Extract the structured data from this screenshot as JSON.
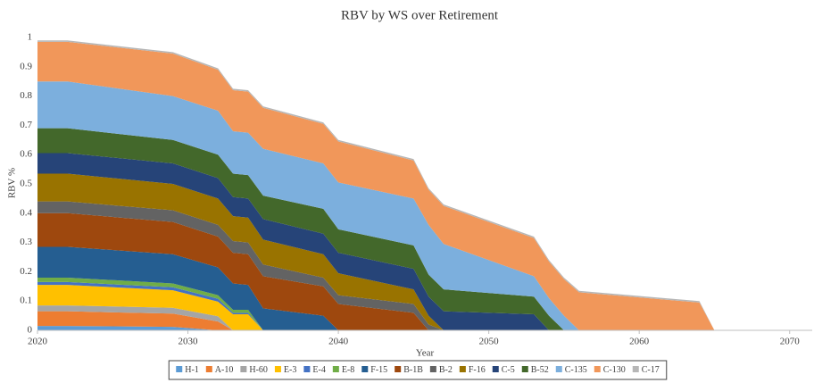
{
  "chart_data": {
    "type": "stacked_area",
    "title": "RBV by WS over Retirement",
    "x_label": "Year",
    "y_label": "RBV %",
    "x": [
      2020,
      2022,
      2029,
      2032,
      2033,
      2034,
      2035,
      2039,
      2040,
      2045,
      2046,
      2047,
      2053,
      2054,
      2055,
      2056,
      2064,
      2065,
      2071
    ],
    "xlim": [
      2020,
      2071.5
    ],
    "xticks": [
      2020,
      2030,
      2040,
      2050,
      2060,
      2070
    ],
    "ylim": [
      0,
      1
    ],
    "yticks": [
      0,
      0.1,
      0.2,
      0.3,
      0.4,
      0.5,
      0.6,
      0.7,
      0.8,
      0.9,
      1
    ],
    "grid": false,
    "legend": "bottom",
    "series": [
      {
        "name": "H-1",
        "color": "#5b9bd5",
        "values": [
          0.015,
          0.015,
          0.012,
          0,
          0,
          0,
          0,
          0,
          0,
          0,
          0,
          0,
          0,
          0,
          0,
          0,
          0,
          0,
          0
        ]
      },
      {
        "name": "A-10",
        "color": "#ed7d31",
        "values": [
          0.05,
          0.05,
          0.045,
          0.03,
          0,
          0,
          0,
          0,
          0,
          0,
          0,
          0,
          0,
          0,
          0,
          0,
          0,
          0,
          0
        ]
      },
      {
        "name": "H-60",
        "color": "#a5a5a5",
        "values": [
          0.02,
          0.02,
          0.02,
          0.018,
          0,
          0,
          0,
          0,
          0,
          0,
          0,
          0,
          0,
          0,
          0,
          0,
          0,
          0,
          0
        ]
      },
      {
        "name": "E-3",
        "color": "#ffc000",
        "values": [
          0.07,
          0.07,
          0.06,
          0.05,
          0.055,
          0.055,
          0,
          0,
          0,
          0,
          0,
          0,
          0,
          0,
          0,
          0,
          0,
          0,
          0
        ]
      },
      {
        "name": "E-4",
        "color": "#4472c4",
        "values": [
          0.01,
          0.01,
          0.01,
          0.01,
          0.005,
          0.005,
          0,
          0,
          0,
          0,
          0,
          0,
          0,
          0,
          0,
          0,
          0,
          0,
          0
        ]
      },
      {
        "name": "E-8",
        "color": "#70ad47",
        "values": [
          0.015,
          0.015,
          0.013,
          0.012,
          0.01,
          0.01,
          0,
          0,
          0,
          0,
          0,
          0,
          0,
          0,
          0,
          0,
          0,
          0,
          0
        ]
      },
      {
        "name": "F-15",
        "color": "#255e91",
        "values": [
          0.105,
          0.105,
          0.1,
          0.095,
          0.09,
          0.085,
          0.075,
          0.05,
          0,
          0,
          0,
          0,
          0,
          0,
          0,
          0,
          0,
          0,
          0
        ]
      },
      {
        "name": "B-1B",
        "color": "#9e480e",
        "values": [
          0.115,
          0.115,
          0.11,
          0.105,
          0.105,
          0.105,
          0.11,
          0.1,
          0.09,
          0.06,
          0,
          0,
          0,
          0,
          0,
          0,
          0,
          0,
          0
        ]
      },
      {
        "name": "B-2",
        "color": "#636363",
        "values": [
          0.04,
          0.04,
          0.04,
          0.04,
          0.04,
          0.04,
          0.04,
          0.03,
          0.03,
          0.03,
          0.02,
          0,
          0,
          0,
          0,
          0,
          0,
          0,
          0
        ]
      },
      {
        "name": "F-16",
        "color": "#997300",
        "values": [
          0.095,
          0.095,
          0.09,
          0.09,
          0.085,
          0.085,
          0.085,
          0.08,
          0.075,
          0.05,
          0.03,
          0,
          0,
          0,
          0,
          0,
          0,
          0,
          0
        ]
      },
      {
        "name": "C-5",
        "color": "#264478",
        "values": [
          0.07,
          0.07,
          0.07,
          0.07,
          0.065,
          0.065,
          0.07,
          0.07,
          0.07,
          0.07,
          0.065,
          0.065,
          0.055,
          0,
          0,
          0,
          0,
          0,
          0
        ]
      },
      {
        "name": "B-52",
        "color": "#43682b",
        "values": [
          0.085,
          0.085,
          0.08,
          0.08,
          0.08,
          0.08,
          0.08,
          0.085,
          0.08,
          0.08,
          0.075,
          0.075,
          0.06,
          0.05,
          0,
          0,
          0,
          0,
          0
        ]
      },
      {
        "name": "C-135",
        "color": "#7cafdd",
        "values": [
          0.16,
          0.16,
          0.15,
          0.15,
          0.145,
          0.145,
          0.16,
          0.155,
          0.16,
          0.16,
          0.17,
          0.155,
          0.07,
          0.06,
          0.05,
          0,
          0,
          0,
          0
        ]
      },
      {
        "name": "C-130",
        "color": "#f1975a",
        "values": [
          0.135,
          0.135,
          0.145,
          0.14,
          0.14,
          0.14,
          0.14,
          0.135,
          0.14,
          0.13,
          0.12,
          0.13,
          0.13,
          0.125,
          0.125,
          0.13,
          0.095,
          0,
          0
        ]
      },
      {
        "name": "C-17",
        "color": "#b7b7b7",
        "values": [
          0.005,
          0.005,
          0.005,
          0.005,
          0.005,
          0.005,
          0.005,
          0.005,
          0.005,
          0.005,
          0.005,
          0.005,
          0.005,
          0.005,
          0.005,
          0.005,
          0.005,
          0,
          0
        ]
      }
    ]
  }
}
